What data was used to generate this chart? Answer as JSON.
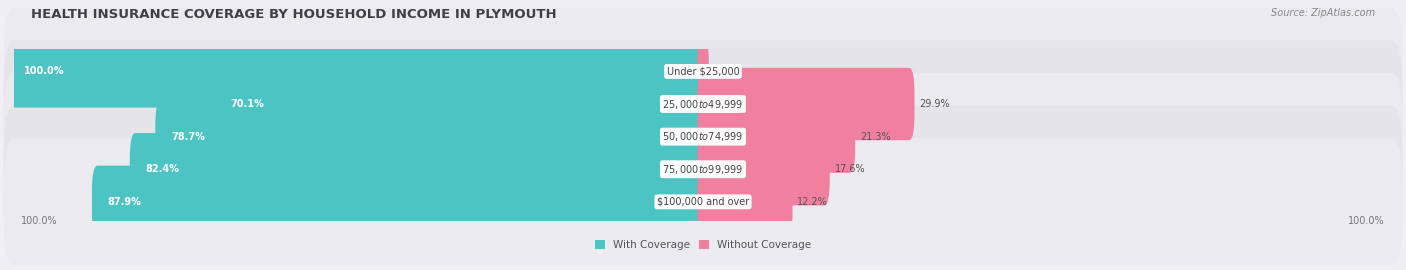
{
  "title": "HEALTH INSURANCE COVERAGE BY HOUSEHOLD INCOME IN PLYMOUTH",
  "source": "Source: ZipAtlas.com",
  "categories": [
    "Under $25,000",
    "$25,000 to $49,999",
    "$50,000 to $74,999",
    "$75,000 to $99,999",
    "$100,000 and over"
  ],
  "with_coverage": [
    100.0,
    70.1,
    78.7,
    82.4,
    87.9
  ],
  "without_coverage": [
    0.0,
    29.9,
    21.3,
    17.6,
    12.2
  ],
  "color_with": "#4dc4c4",
  "color_without": "#f07fa0",
  "row_bg_odd": "#eaeaee",
  "row_bg_even": "#f0f0f4",
  "title_fontsize": 9.5,
  "label_fontsize": 7.0,
  "pct_fontsize": 7.0,
  "tick_fontsize": 7.0,
  "legend_fontsize": 7.5,
  "source_fontsize": 7.0
}
